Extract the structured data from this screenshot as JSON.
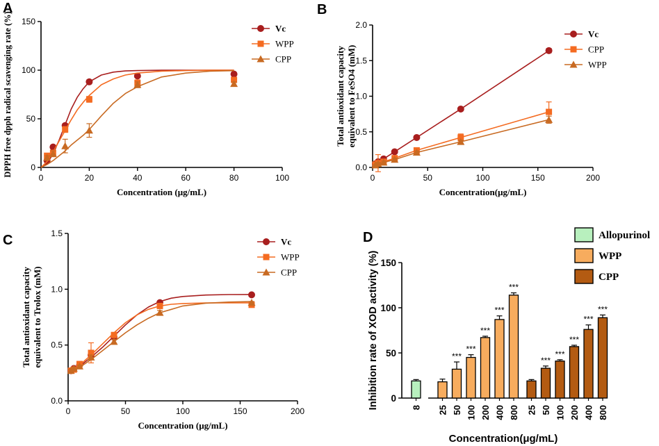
{
  "colors": {
    "vc": "#a81e1e",
    "orange": "#f46b21",
    "brown": "#c86a22",
    "allopurinol": "#b8f0be",
    "wpp_bar": "#f7ac5e",
    "cpp_bar": "#b35b12"
  },
  "chart_data": [
    {
      "id": "A",
      "type": "scatter",
      "panel_label": "A",
      "xlabel": "Concentration (μg/mL)",
      "ylabel": "DPPH free dpph radical scavenging rate (%)",
      "xlim": [
        0,
        100
      ],
      "ylim": [
        0,
        150
      ],
      "xticks": [
        0,
        20,
        40,
        60,
        80,
        100
      ],
      "yticks": [
        0,
        50,
        100,
        150
      ],
      "legend_position": "top-right",
      "series": [
        {
          "name": "Vc",
          "marker": "circle",
          "color": "#a81e1e",
          "x": [
            2.5,
            5,
            10,
            20,
            40,
            80
          ],
          "y": [
            7,
            21,
            43,
            88,
            94,
            96
          ],
          "err": [
            1,
            1,
            2,
            2,
            1,
            1
          ],
          "fit_x": [
            0,
            2.5,
            5,
            7.5,
            10,
            12.5,
            15,
            17.5,
            20,
            25,
            30,
            35,
            40,
            50,
            60,
            70,
            80
          ],
          "fit_y": [
            0,
            4,
            14,
            28,
            44,
            60,
            72,
            81,
            88,
            95,
            98,
            99.2,
            99.6,
            99.9,
            100,
            100,
            100
          ]
        },
        {
          "name": "WPP",
          "marker": "square",
          "color": "#f46b21",
          "x": [
            2.5,
            5,
            10,
            20,
            40,
            80
          ],
          "y": [
            12,
            15,
            39,
            70,
            87,
            90
          ],
          "err": [
            2,
            2,
            3,
            3,
            3,
            2
          ],
          "fit_x": [
            0,
            2.5,
            5,
            7.5,
            10,
            12.5,
            15,
            17.5,
            20,
            25,
            30,
            35,
            40,
            50,
            60,
            70,
            80
          ],
          "fit_y": [
            0,
            6,
            16,
            27,
            38,
            49,
            59,
            67,
            74,
            85,
            91,
            95,
            97,
            99,
            99.6,
            99.9,
            100
          ]
        },
        {
          "name": "CPP",
          "marker": "triangle",
          "color": "#c86a22",
          "x": [
            2.5,
            5,
            10,
            20,
            40,
            80
          ],
          "y": [
            10,
            14,
            22,
            38,
            85,
            86
          ],
          "err": [
            2,
            3,
            7,
            7,
            3,
            2
          ],
          "fit_x": [
            0,
            2.5,
            5,
            7.5,
            10,
            12.5,
            15,
            17.5,
            20,
            25,
            30,
            35,
            40,
            50,
            60,
            70,
            80
          ],
          "fit_y": [
            0,
            3,
            7,
            12,
            17,
            23,
            28,
            33,
            39,
            53,
            66,
            76,
            83,
            93,
            97,
            99,
            99.5
          ]
        }
      ]
    },
    {
      "id": "B",
      "type": "line",
      "panel_label": "B",
      "xlabel": "Concentration(μg/mL)",
      "ylabel_lines": [
        "Total antioxidant capacity",
        "equivalent to FeSO4 (mM)"
      ],
      "xlim": [
        0,
        200
      ],
      "ylim": [
        0,
        2.0
      ],
      "xticks": [
        0,
        50,
        100,
        150,
        200
      ],
      "yticks": [
        0.0,
        0.5,
        1.0,
        1.5,
        2.0
      ],
      "legend_position": "top-right",
      "series": [
        {
          "name": "Vc",
          "marker": "circle",
          "color": "#a81e1e",
          "x": [
            2.5,
            5,
            10,
            20,
            40,
            80,
            160
          ],
          "y": [
            0.05,
            0.08,
            0.12,
            0.22,
            0.42,
            0.82,
            1.64
          ],
          "err": [
            0.01,
            0.02,
            0.02,
            0.02,
            0.02,
            0.02,
            0.03
          ]
        },
        {
          "name": "CPP",
          "marker": "square",
          "color": "#f46b21",
          "x": [
            2.5,
            5,
            10,
            20,
            40,
            80,
            160
          ],
          "y": [
            0.04,
            0.06,
            0.08,
            0.13,
            0.24,
            0.42,
            0.78
          ],
          "err": [
            0.02,
            0.12,
            0.03,
            0.03,
            0.03,
            0.05,
            0.14
          ]
        },
        {
          "name": "WPP",
          "marker": "triangle",
          "color": "#c86a22",
          "x": [
            2.5,
            5,
            10,
            20,
            40,
            80,
            160
          ],
          "y": [
            0.03,
            0.05,
            0.07,
            0.11,
            0.21,
            0.36,
            0.67
          ],
          "err": [
            0.01,
            0.02,
            0.02,
            0.02,
            0.02,
            0.02,
            0.05
          ]
        }
      ]
    },
    {
      "id": "C",
      "type": "scatter",
      "panel_label": "C",
      "xlabel": "Concentration (μg/mL)",
      "ylabel_lines": [
        "Total antioxidant capacity",
        "equivalent to Trolox (mM)"
      ],
      "xlim": [
        0,
        200
      ],
      "ylim": [
        0,
        1.5
      ],
      "xticks": [
        0,
        50,
        100,
        150,
        200
      ],
      "yticks": [
        0.0,
        0.5,
        1.0,
        1.5
      ],
      "legend_position": "top-right",
      "series": [
        {
          "name": "Vc",
          "marker": "circle",
          "color": "#a81e1e",
          "x": [
            2.5,
            5,
            10,
            20,
            40,
            80,
            160
          ],
          "y": [
            0.27,
            0.29,
            0.32,
            0.41,
            0.57,
            0.88,
            0.95
          ],
          "err": [
            0.01,
            0.01,
            0.01,
            0.02,
            0.02,
            0.01,
            0.01
          ],
          "fit_x": [
            0,
            5,
            10,
            20,
            30,
            40,
            50,
            60,
            70,
            80,
            90,
            100,
            120,
            140,
            160
          ],
          "fit_y": [
            0.26,
            0.28,
            0.31,
            0.39,
            0.48,
            0.58,
            0.68,
            0.77,
            0.84,
            0.89,
            0.92,
            0.935,
            0.948,
            0.952,
            0.953
          ]
        },
        {
          "name": "WPP",
          "marker": "square",
          "color": "#f46b21",
          "x": [
            2.5,
            5,
            10,
            20,
            40,
            80,
            160
          ],
          "y": [
            0.27,
            0.28,
            0.33,
            0.43,
            0.59,
            0.85,
            0.86
          ],
          "err": [
            0.01,
            0.02,
            0.02,
            0.09,
            0.02,
            0.02,
            0.01
          ],
          "fit_x": [
            0,
            5,
            10,
            20,
            30,
            40,
            50,
            60,
            70,
            80,
            90,
            100,
            120,
            140,
            160
          ],
          "fit_y": [
            0.26,
            0.28,
            0.32,
            0.41,
            0.51,
            0.61,
            0.7,
            0.77,
            0.82,
            0.85,
            0.865,
            0.872,
            0.877,
            0.878,
            0.878
          ]
        },
        {
          "name": "CPP",
          "marker": "triangle",
          "color": "#c86a22",
          "x": [
            2.5,
            5,
            10,
            20,
            40,
            80,
            160
          ],
          "y": [
            0.27,
            0.29,
            0.31,
            0.39,
            0.53,
            0.79,
            0.88
          ],
          "err": [
            0.01,
            0.01,
            0.01,
            0.02,
            0.02,
            0.02,
            0.01
          ],
          "fit_x": [
            0,
            5,
            10,
            20,
            30,
            40,
            50,
            60,
            70,
            80,
            90,
            100,
            120,
            140,
            160
          ],
          "fit_y": [
            0.25,
            0.27,
            0.3,
            0.37,
            0.45,
            0.53,
            0.61,
            0.68,
            0.74,
            0.79,
            0.82,
            0.85,
            0.875,
            0.885,
            0.89
          ]
        }
      ]
    },
    {
      "id": "D",
      "type": "bar",
      "panel_label": "D",
      "xlabel": "Concentration(μg/mL)",
      "ylabel": "Inhibition rate of XOD activity (%)",
      "ylim": [
        0,
        150
      ],
      "yticks": [
        0,
        50,
        100,
        150
      ],
      "legend_position": "top-right",
      "legend": [
        {
          "name": "Allopurinol",
          "color": "#b8f0be"
        },
        {
          "name": "WPP",
          "color": "#f7ac5e"
        },
        {
          "name": "CPP",
          "color": "#b35b12"
        }
      ],
      "groups": [
        {
          "name": "Allopurinol",
          "color": "#b8f0be",
          "categories": [
            "8"
          ],
          "values": [
            19
          ],
          "err": [
            1.5
          ],
          "sig": [
            ""
          ]
        },
        {
          "name": "WPP",
          "color": "#f7ac5e",
          "categories": [
            "25",
            "50",
            "100",
            "200",
            "400",
            "800"
          ],
          "values": [
            18,
            32,
            45,
            67,
            87,
            114
          ],
          "err": [
            3,
            8,
            3,
            1.5,
            4,
            2.5
          ],
          "sig": [
            "",
            "***",
            "***",
            "***",
            "***",
            "***"
          ]
        },
        {
          "name": "CPP",
          "color": "#b35b12",
          "categories": [
            "25",
            "50",
            "100",
            "200",
            "400",
            "800"
          ],
          "values": [
            19,
            33,
            41,
            57,
            76,
            89
          ],
          "err": [
            1.5,
            2.5,
            1.5,
            1.5,
            5,
            3
          ],
          "sig": [
            "",
            "***",
            "***",
            "***",
            "***",
            "***"
          ]
        }
      ]
    }
  ]
}
